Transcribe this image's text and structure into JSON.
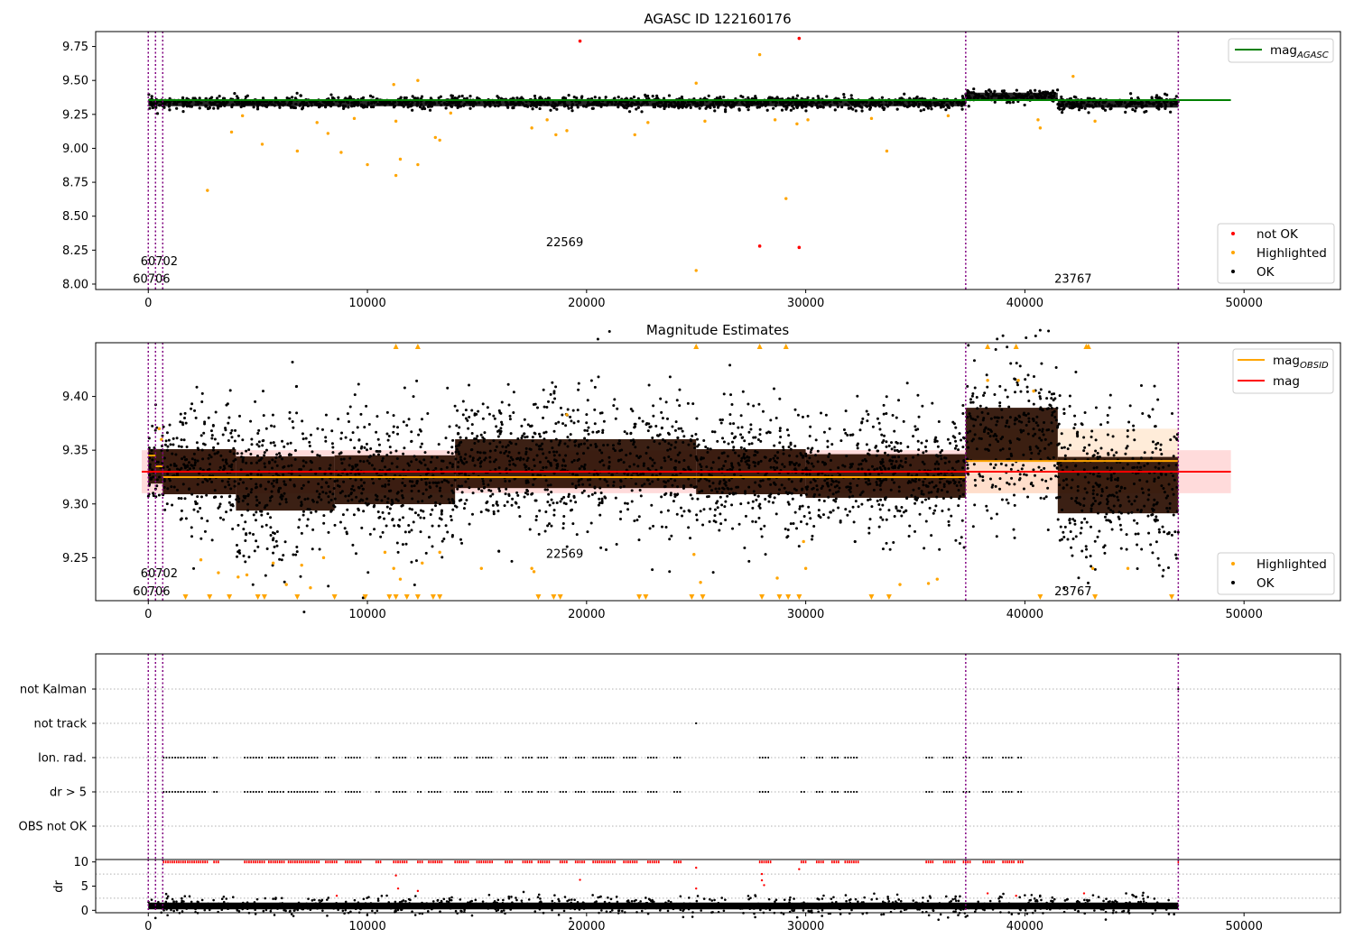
{
  "colors": {
    "ok": "#000000",
    "highlighted": "#ffa500",
    "not_ok": "#ff0000",
    "mag_agasc_line": "#008000",
    "mag_obsid_line": "#ffa500",
    "mag_line": "#ff0000",
    "mag_band": "#ffcccc",
    "vline": "#800080",
    "gridline": "#b0b0b0"
  },
  "chart_data": [
    {
      "type": "scatter",
      "title": "AGASC ID 122160176",
      "xlim": [
        -2400,
        54400
      ],
      "ylim": [
        7.96,
        9.86
      ],
      "xticks": [
        0,
        10000,
        20000,
        30000,
        40000,
        50000
      ],
      "yticks": [
        8.0,
        8.25,
        8.5,
        8.75,
        9.0,
        9.25,
        9.5,
        9.75
      ],
      "legend_position": "lower-right",
      "legend": [
        {
          "name": "not OK",
          "marker": "point",
          "color": "#ff0000"
        },
        {
          "name": "Highlighted",
          "marker": "point",
          "color": "#ffa500"
        },
        {
          "name": "OK",
          "marker": "point",
          "color": "#000000"
        }
      ],
      "line_legend_position": "top-right",
      "lines": [
        {
          "name": "mag",
          "subscript": "AGASC",
          "y": 9.355,
          "x": [
            0,
            49400
          ],
          "color": "#008000"
        }
      ],
      "obsid_boundaries": [
        0,
        330,
        660,
        37300,
        47000
      ],
      "obsid_labels": [
        {
          "text": "60702",
          "x": 500,
          "y": 8.14
        },
        {
          "text": "60706",
          "x": 150,
          "y": 8.01
        },
        {
          "text": "22569",
          "x": 19000,
          "y": 8.28
        },
        {
          "text": "23767",
          "x": 42200,
          "y": 8.01
        }
      ],
      "ok_band_segments": [
        {
          "x": [
            0,
            37300
          ],
          "y_low": 9.31,
          "y_high": 9.36
        },
        {
          "x": [
            37300,
            41500
          ],
          "y_low": 9.36,
          "y_high": 9.41
        },
        {
          "x": [
            41500,
            47000
          ],
          "y_low": 9.3,
          "y_high": 9.36
        }
      ],
      "highlighted_points": {
        "x": [
          2700,
          3800,
          4300,
          5200,
          6800,
          7700,
          8200,
          8800,
          9400,
          10000,
          11200,
          11300,
          11500,
          11300,
          12300,
          12300,
          13100,
          13300,
          13800,
          17500,
          18200,
          18600,
          19100,
          22200,
          22800,
          25000,
          25000,
          25400,
          27900,
          28600,
          29100,
          29600,
          30100,
          33000,
          33700,
          36500,
          40600,
          40700,
          42200,
          43200
        ],
        "y": [
          8.69,
          9.12,
          9.24,
          9.03,
          8.98,
          9.19,
          9.11,
          8.97,
          9.22,
          8.88,
          9.47,
          8.8,
          8.92,
          9.2,
          9.5,
          8.88,
          9.08,
          9.06,
          9.26,
          9.15,
          9.21,
          9.1,
          9.13,
          9.1,
          9.19,
          8.1,
          9.48,
          9.2,
          9.69,
          9.21,
          8.63,
          9.18,
          9.21,
          9.22,
          8.98,
          9.24,
          9.21,
          9.15,
          9.53,
          9.2
        ]
      },
      "not_ok_points": {
        "x": [
          19700,
          27900,
          29700,
          29700
        ],
        "y": [
          9.79,
          8.28,
          9.81,
          8.27
        ]
      }
    },
    {
      "type": "scatter",
      "title": "Magnitude Estimates",
      "xlim": [
        -2400,
        54400
      ],
      "ylim": [
        9.21,
        9.45
      ],
      "xticks": [
        0,
        10000,
        20000,
        30000,
        40000,
        50000
      ],
      "yticks": [
        9.25,
        9.3,
        9.35,
        9.4
      ],
      "legend_position": "lower-right",
      "legend": [
        {
          "name": "Highlighted",
          "marker": "point",
          "color": "#ffa500"
        },
        {
          "name": "OK",
          "marker": "point",
          "color": "#000000"
        }
      ],
      "line_legend_position": "top-right",
      "lines": [
        {
          "name": "mag",
          "subscript": "OBSID",
          "color": "#ffa500",
          "segments": [
            {
              "x": [
                0,
                330
              ],
              "y": 9.345
            },
            {
              "x": [
                330,
                660
              ],
              "y": 9.335
            },
            {
              "x": [
                660,
                37300
              ],
              "y": 9.325
            },
            {
              "x": [
                37300,
                47000
              ],
              "y": 9.34
            }
          ]
        },
        {
          "name": "mag",
          "subscript": "",
          "y": 9.33,
          "x": [
            -300,
            49400
          ],
          "color": "#ff0000"
        }
      ],
      "mag_band": {
        "x": [
          -300,
          49400
        ],
        "y_low": 9.31,
        "y_high": 9.35
      },
      "obsid_boundaries": [
        0,
        330,
        660,
        37300,
        47000
      ],
      "obsid_labels": [
        {
          "text": "60702",
          "x": 500,
          "y": 9.232
        },
        {
          "text": "60706",
          "x": 150,
          "y": 9.215
        },
        {
          "text": "22569",
          "x": 19000,
          "y": 9.25
        },
        {
          "text": "23767",
          "x": 42200,
          "y": 9.215
        }
      ],
      "density_segments": [
        {
          "x": [
            0,
            660
          ],
          "y_low": 9.312,
          "y_high": 9.358
        },
        {
          "x": [
            660,
            4000
          ],
          "y_low": 9.3,
          "y_high": 9.36
        },
        {
          "x": [
            4000,
            8500
          ],
          "y_low": 9.283,
          "y_high": 9.355
        },
        {
          "x": [
            8500,
            14000
          ],
          "y_low": 9.29,
          "y_high": 9.355
        },
        {
          "x": [
            14000,
            25000
          ],
          "y_low": 9.305,
          "y_high": 9.37
        },
        {
          "x": [
            25000,
            30000
          ],
          "y_low": 9.3,
          "y_high": 9.36
        },
        {
          "x": [
            30000,
            37300
          ],
          "y_low": 9.297,
          "y_high": 9.355
        },
        {
          "x": [
            37300,
            41500
          ],
          "y_low": 9.33,
          "y_high": 9.4
        },
        {
          "x": [
            41500,
            47000
          ],
          "y_low": 9.28,
          "y_high": 9.355
        }
      ],
      "upper_limit_markers_x": [
        11300,
        12300,
        25000,
        27900,
        29100,
        38300,
        39600,
        42800,
        42900
      ],
      "lower_limit_markers_x": [
        1700,
        2800,
        3700,
        5000,
        5300,
        6800,
        8500,
        9900,
        11000,
        11300,
        11800,
        12300,
        13000,
        13300,
        17800,
        18500,
        18800,
        22400,
        22700,
        24800,
        25300,
        28000,
        28800,
        29200,
        29700,
        33000,
        33800,
        40700,
        43200,
        46700
      ],
      "highlighted_points": {
        "x": [
          500,
          600,
          2400,
          3200,
          4100,
          4500,
          5700,
          6300,
          7000,
          7400,
          8000,
          10800,
          11200,
          11500,
          12500,
          13300,
          15200,
          17500,
          17600,
          19100,
          24900,
          25200,
          28700,
          29900,
          30000,
          34300,
          35600,
          36000,
          38300,
          39700,
          40400,
          44700,
          43100
        ],
        "y": [
          9.37,
          9.36,
          9.248,
          9.236,
          9.232,
          9.234,
          9.245,
          9.225,
          9.243,
          9.222,
          9.25,
          9.255,
          9.24,
          9.23,
          9.245,
          9.255,
          9.24,
          9.24,
          9.237,
          9.383,
          9.253,
          9.227,
          9.231,
          9.265,
          9.24,
          9.225,
          9.226,
          9.23,
          9.415,
          9.415,
          9.405,
          9.24,
          9.24
        ]
      }
    },
    {
      "type": "scatter",
      "title": "",
      "xlim": [
        -2400,
        54400
      ],
      "xticks": [],
      "yticks": [
        "not Kalman",
        "not track",
        "Ion. rad.",
        "dr > 5",
        "OBS not OK"
      ],
      "flag_rows": [
        {
          "name": "not Kalman",
          "points_x": [
            47000
          ]
        },
        {
          "name": "not track",
          "points_x": [
            25000
          ]
        },
        {
          "name": "Ion. rad.",
          "segments": [
            [
              700,
              1700
            ],
            [
              1800,
              2700
            ],
            [
              3000,
              3200
            ],
            [
              4400,
              5300
            ],
            [
              5500,
              6200
            ],
            [
              6400,
              7800
            ],
            [
              8100,
              8600
            ],
            [
              9000,
              9700
            ],
            [
              10400,
              10600
            ],
            [
              11200,
              11800
            ],
            [
              12300,
              12500
            ],
            [
              12800,
              13400
            ],
            [
              14000,
              14600
            ],
            [
              15000,
              15700
            ],
            [
              16300,
              16600
            ],
            [
              17100,
              17500
            ],
            [
              17800,
              18300
            ],
            [
              18800,
              19100
            ],
            [
              19500,
              19900
            ],
            [
              20300,
              21300
            ],
            [
              21700,
              22300
            ],
            [
              22800,
              23300
            ],
            [
              24000,
              24300
            ],
            [
              27900,
              28400
            ],
            [
              29800,
              30000
            ],
            [
              30500,
              30800
            ],
            [
              31200,
              31500
            ],
            [
              31800,
              32400
            ],
            [
              35500,
              35800
            ],
            [
              36300,
              36800
            ],
            [
              37200,
              37500
            ],
            [
              38100,
              38600
            ],
            [
              39000,
              39500
            ],
            [
              39700,
              39900
            ]
          ]
        },
        {
          "name": "dr > 5",
          "segments": [
            [
              700,
              1700
            ],
            [
              1800,
              2700
            ],
            [
              3000,
              3200
            ],
            [
              4400,
              5300
            ],
            [
              5500,
              6200
            ],
            [
              6400,
              7800
            ],
            [
              8100,
              8600
            ],
            [
              9000,
              9700
            ],
            [
              10400,
              10600
            ],
            [
              11200,
              11800
            ],
            [
              12300,
              12500
            ],
            [
              12800,
              13400
            ],
            [
              14000,
              14600
            ],
            [
              15000,
              15700
            ],
            [
              16300,
              16600
            ],
            [
              17100,
              17500
            ],
            [
              17800,
              18300
            ],
            [
              18800,
              19100
            ],
            [
              19500,
              19900
            ],
            [
              20300,
              21300
            ],
            [
              21700,
              22300
            ],
            [
              22800,
              23300
            ],
            [
              24000,
              24300
            ],
            [
              27900,
              28400
            ],
            [
              29800,
              30000
            ],
            [
              30500,
              30800
            ],
            [
              31200,
              31500
            ],
            [
              31800,
              32400
            ],
            [
              35500,
              35800
            ],
            [
              36300,
              36800
            ],
            [
              37200,
              37500
            ],
            [
              38100,
              38600
            ],
            [
              39000,
              39500
            ],
            [
              39700,
              39900
            ]
          ]
        },
        {
          "name": "OBS not OK",
          "points_x": []
        }
      ],
      "obsid_boundaries": [
        0,
        330,
        660,
        37300,
        47000
      ]
    },
    {
      "type": "scatter",
      "title": "",
      "xlim": [
        -2400,
        54400
      ],
      "ylim": [
        -0.5,
        10.5
      ],
      "xticks": [
        0,
        10000,
        20000,
        30000,
        40000,
        50000
      ],
      "yticks": [
        0,
        5,
        10
      ],
      "ylabel": "dr",
      "ok_band": {
        "x": [
          0,
          47000
        ],
        "y_low": 0.2,
        "y_high": 1.6
      },
      "red_ceiling_y": 10,
      "red_ceiling_segments": [
        [
          700,
          1700
        ],
        [
          1800,
          2700
        ],
        [
          3000,
          3200
        ],
        [
          4400,
          5300
        ],
        [
          5500,
          6200
        ],
        [
          6400,
          7800
        ],
        [
          8100,
          8600
        ],
        [
          9000,
          9700
        ],
        [
          10400,
          10600
        ],
        [
          11200,
          11800
        ],
        [
          12300,
          12500
        ],
        [
          12800,
          13400
        ],
        [
          14000,
          14600
        ],
        [
          15000,
          15700
        ],
        [
          16300,
          16600
        ],
        [
          17100,
          17500
        ],
        [
          17800,
          18300
        ],
        [
          18800,
          19100
        ],
        [
          19500,
          19900
        ],
        [
          20300,
          21300
        ],
        [
          21700,
          22300
        ],
        [
          22800,
          23300
        ],
        [
          24000,
          24300
        ],
        [
          27900,
          28400
        ],
        [
          29800,
          30000
        ],
        [
          30500,
          30800
        ],
        [
          31200,
          31500
        ],
        [
          31800,
          32400
        ],
        [
          35500,
          35800
        ],
        [
          36300,
          36800
        ],
        [
          37200,
          37500
        ],
        [
          38100,
          38600
        ],
        [
          39000,
          39500
        ],
        [
          39700,
          39900
        ],
        [
          47000,
          47000
        ]
      ],
      "red_points": {
        "x": [
          8600,
          11300,
          11400,
          12300,
          19700,
          25000,
          25000,
          28000,
          28000,
          28100,
          29700,
          38300,
          39600,
          42700
        ],
        "y": [
          3.0,
          7.2,
          4.5,
          4.0,
          6.3,
          8.8,
          4.5,
          7.5,
          6.2,
          5.2,
          8.5,
          3.5,
          3.0,
          3.5
        ]
      },
      "obsid_boundaries": [
        0,
        330,
        660,
        37300,
        47000
      ]
    }
  ]
}
